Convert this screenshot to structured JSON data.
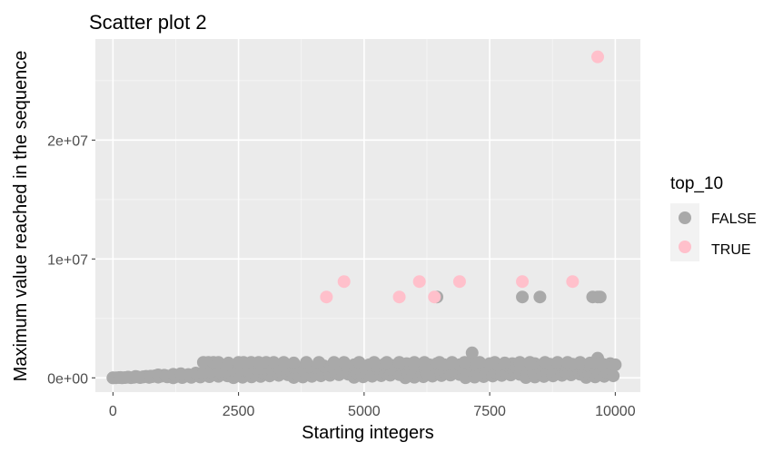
{
  "chart_data": {
    "type": "scatter",
    "title": "Scatter plot 2",
    "xlabel": "Starting integers",
    "ylabel": "Maximum value reached in the sequence",
    "xlim": [
      -350,
      10500
    ],
    "ylim": [
      -1200000,
      28500000
    ],
    "x_ticks": [
      {
        "value": 0,
        "label": "0"
      },
      {
        "value": 2500,
        "label": "2500"
      },
      {
        "value": 5000,
        "label": "5000"
      },
      {
        "value": 7500,
        "label": "7500"
      },
      {
        "value": 10000,
        "label": "10000"
      }
    ],
    "y_ticks": [
      {
        "value": 0,
        "label": "0e+00"
      },
      {
        "value": 10000000,
        "label": "1e+07"
      },
      {
        "value": 20000000,
        "label": "2e+07"
      }
    ],
    "grid": true,
    "background": "#ebebeb",
    "legend": {
      "title": "top_10",
      "position": "right",
      "entries": [
        {
          "label": "FALSE",
          "color": "#a9a9a9"
        },
        {
          "label": "TRUE",
          "color": "#ffc0cb"
        }
      ]
    },
    "series": [
      {
        "name": "FALSE",
        "color": "#a9a9a9",
        "points": [
          [
            0,
            0
          ],
          [
            150,
            30000
          ],
          [
            300,
            60000
          ],
          [
            450,
            120000
          ],
          [
            600,
            90000
          ],
          [
            750,
            150000
          ],
          [
            900,
            250000
          ],
          [
            1050,
            180000
          ],
          [
            1200,
            300000
          ],
          [
            1350,
            350000
          ],
          [
            1500,
            280000
          ],
          [
            1650,
            400000
          ],
          [
            1800,
            450000
          ],
          [
            1950,
            500000
          ],
          [
            2100,
            600000
          ],
          [
            2250,
            550000
          ],
          [
            2400,
            650000
          ],
          [
            2550,
            700000
          ],
          [
            2700,
            600000
          ],
          [
            2850,
            750000
          ],
          [
            3000,
            800000
          ],
          [
            3150,
            700000
          ],
          [
            3300,
            850000
          ],
          [
            3450,
            800000
          ],
          [
            3600,
            900000
          ],
          [
            3750,
            850000
          ],
          [
            3900,
            950000
          ],
          [
            4050,
            900000
          ],
          [
            4200,
            1000000
          ],
          [
            4350,
            950000
          ],
          [
            4500,
            1050000
          ],
          [
            4650,
            1000000
          ],
          [
            4800,
            1100000
          ],
          [
            4950,
            1000000
          ],
          [
            5100,
            1100000
          ],
          [
            5250,
            1000000
          ],
          [
            5400,
            1150000
          ],
          [
            5550,
            1050000
          ],
          [
            5700,
            1100000
          ],
          [
            5850,
            1200000
          ],
          [
            6000,
            1050000
          ],
          [
            6150,
            1150000
          ],
          [
            6300,
            1100000
          ],
          [
            6450,
            1200000
          ],
          [
            6600,
            1100000
          ],
          [
            6750,
            1150000
          ],
          [
            6900,
            1100000
          ],
          [
            7050,
            1200000
          ],
          [
            7200,
            1150000
          ],
          [
            7350,
            1100000
          ],
          [
            7500,
            1200000
          ],
          [
            7650,
            1100000
          ],
          [
            7800,
            1150000
          ],
          [
            7950,
            1200000
          ],
          [
            8100,
            1100000
          ],
          [
            8250,
            1150000
          ],
          [
            8400,
            1200000
          ],
          [
            8550,
            1100000
          ],
          [
            8700,
            1150000
          ],
          [
            8850,
            1200000
          ],
          [
            9000,
            1100000
          ],
          [
            9150,
            1150000
          ],
          [
            9300,
            1200000
          ],
          [
            9450,
            1100000
          ],
          [
            9600,
            1200000
          ],
          [
            9750,
            1150000
          ],
          [
            9900,
            1200000
          ],
          [
            10000,
            1100000
          ],
          [
            1800,
            1300000
          ],
          [
            1900,
            1300000
          ],
          [
            2000,
            1300000
          ],
          [
            2100,
            1300000
          ],
          [
            2300,
            1250000
          ],
          [
            2500,
            1300000
          ],
          [
            2600,
            1300000
          ],
          [
            2750,
            1300000
          ],
          [
            2900,
            1300000
          ],
          [
            3050,
            1300000
          ],
          [
            3200,
            1300000
          ],
          [
            3400,
            1300000
          ],
          [
            3600,
            1250000
          ],
          [
            3850,
            1300000
          ],
          [
            4100,
            1300000
          ],
          [
            4400,
            1300000
          ],
          [
            4600,
            1300000
          ],
          [
            4900,
            1300000
          ],
          [
            5200,
            1300000
          ],
          [
            5450,
            1300000
          ],
          [
            5700,
            1300000
          ],
          [
            6000,
            1300000
          ],
          [
            6200,
            1300000
          ],
          [
            6500,
            1300000
          ],
          [
            6750,
            1300000
          ],
          [
            7000,
            1300000
          ],
          [
            7300,
            1300000
          ],
          [
            7600,
            1300000
          ],
          [
            7800,
            1250000
          ],
          [
            8100,
            1300000
          ],
          [
            8300,
            1300000
          ],
          [
            8600,
            1300000
          ],
          [
            8850,
            1300000
          ],
          [
            9050,
            1300000
          ],
          [
            9300,
            1300000
          ],
          [
            9500,
            1250000
          ],
          [
            7150,
            2100000
          ],
          [
            9650,
            1650000
          ],
          [
            9700,
            1200000
          ],
          [
            6450,
            6800000
          ],
          [
            8150,
            6800000
          ],
          [
            8500,
            6800000
          ],
          [
            9550,
            6800000
          ],
          [
            9650,
            6800000
          ],
          [
            9700,
            6800000
          ]
        ]
      },
      {
        "name": "TRUE",
        "color": "#ffc0cb",
        "points": [
          [
            4250,
            6800000
          ],
          [
            4600,
            8100000
          ],
          [
            5700,
            6800000
          ],
          [
            6100,
            8100000
          ],
          [
            6400,
            6800000
          ],
          [
            6900,
            8100000
          ],
          [
            8150,
            8100000
          ],
          [
            9150,
            8100000
          ],
          [
            9650,
            27000000
          ]
        ]
      }
    ]
  }
}
